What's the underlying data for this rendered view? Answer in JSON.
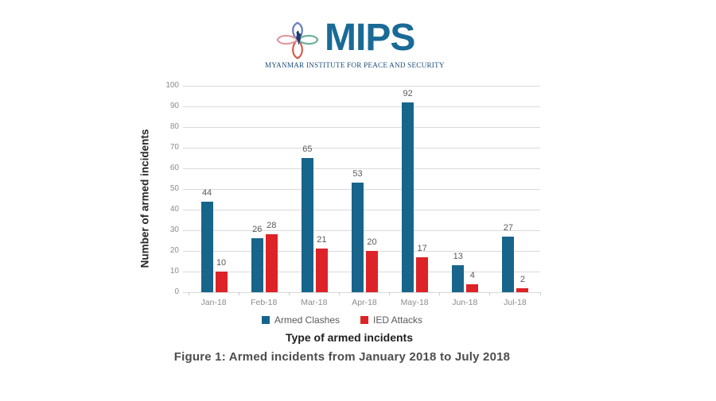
{
  "logo": {
    "brand": "MIPS",
    "subtitle": "MYANMAR INSTITUTE FOR PEACE AND SECURITY",
    "brand_color": "#1a6a96",
    "icon": "mips-knot-logo"
  },
  "chart_data": {
    "type": "bar",
    "categories": [
      "Jan-18",
      "Feb-18",
      "Mar-18",
      "Apr-18",
      "May-18",
      "Jun-18",
      "Jul-18"
    ],
    "series": [
      {
        "name": "Armed Clashes",
        "color": "#17658b",
        "values": [
          44,
          26,
          65,
          53,
          92,
          13,
          27
        ]
      },
      {
        "name": "IED Attacks",
        "color": "#dd2327",
        "values": [
          10,
          28,
          21,
          20,
          17,
          4,
          2
        ]
      }
    ],
    "xlabel": "Type of armed incidents",
    "ylabel": "Number of armed incidents",
    "ylim": [
      0,
      100
    ],
    "ytick_step": 10,
    "grid": true,
    "value_labels": true,
    "legend_position": "bottom",
    "caption": "Figure 1: Armed incidents from January 2018 to July 2018"
  },
  "colors": {
    "gridline": "#d9d9d9",
    "axis_tick": "#c9c9c9",
    "tick_label": "#8c8c8c",
    "value_label": "#5a5a5a",
    "legend_text": "#5a5a5a"
  }
}
